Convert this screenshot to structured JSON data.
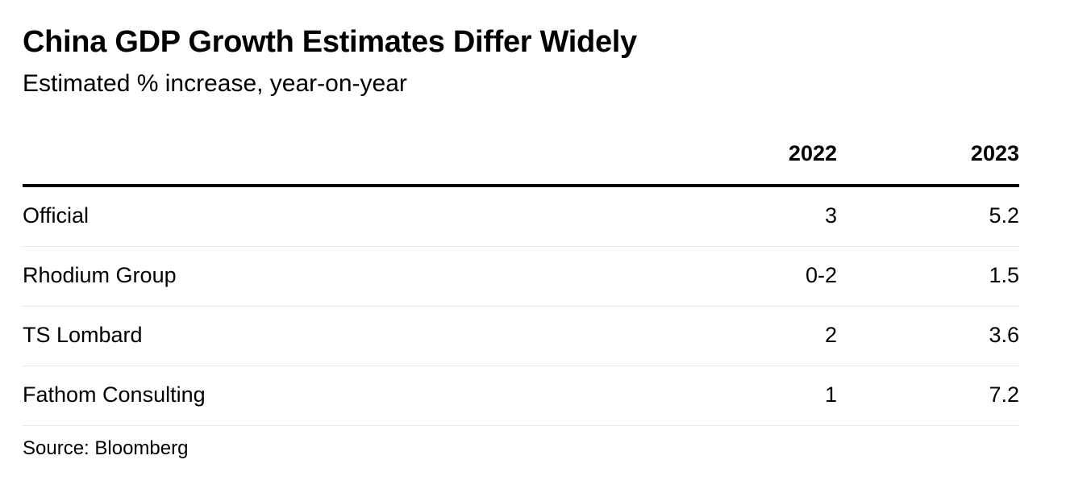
{
  "chart_data": {
    "type": "table",
    "title": "China GDP Growth Estimates Differ Widely",
    "subtitle": "Estimated % increase, year-on-year",
    "columns": [
      "2022",
      "2023"
    ],
    "rows": [
      {
        "label": "Official",
        "values": [
          "3",
          "5.2"
        ]
      },
      {
        "label": "Rhodium Group",
        "values": [
          "0-2",
          "1.5"
        ]
      },
      {
        "label": "TS Lombard",
        "values": [
          "2",
          "3.6"
        ]
      },
      {
        "label": "Fathom Consulting",
        "values": [
          "1",
          "7.2"
        ]
      }
    ],
    "source": "Source: Bloomberg"
  }
}
